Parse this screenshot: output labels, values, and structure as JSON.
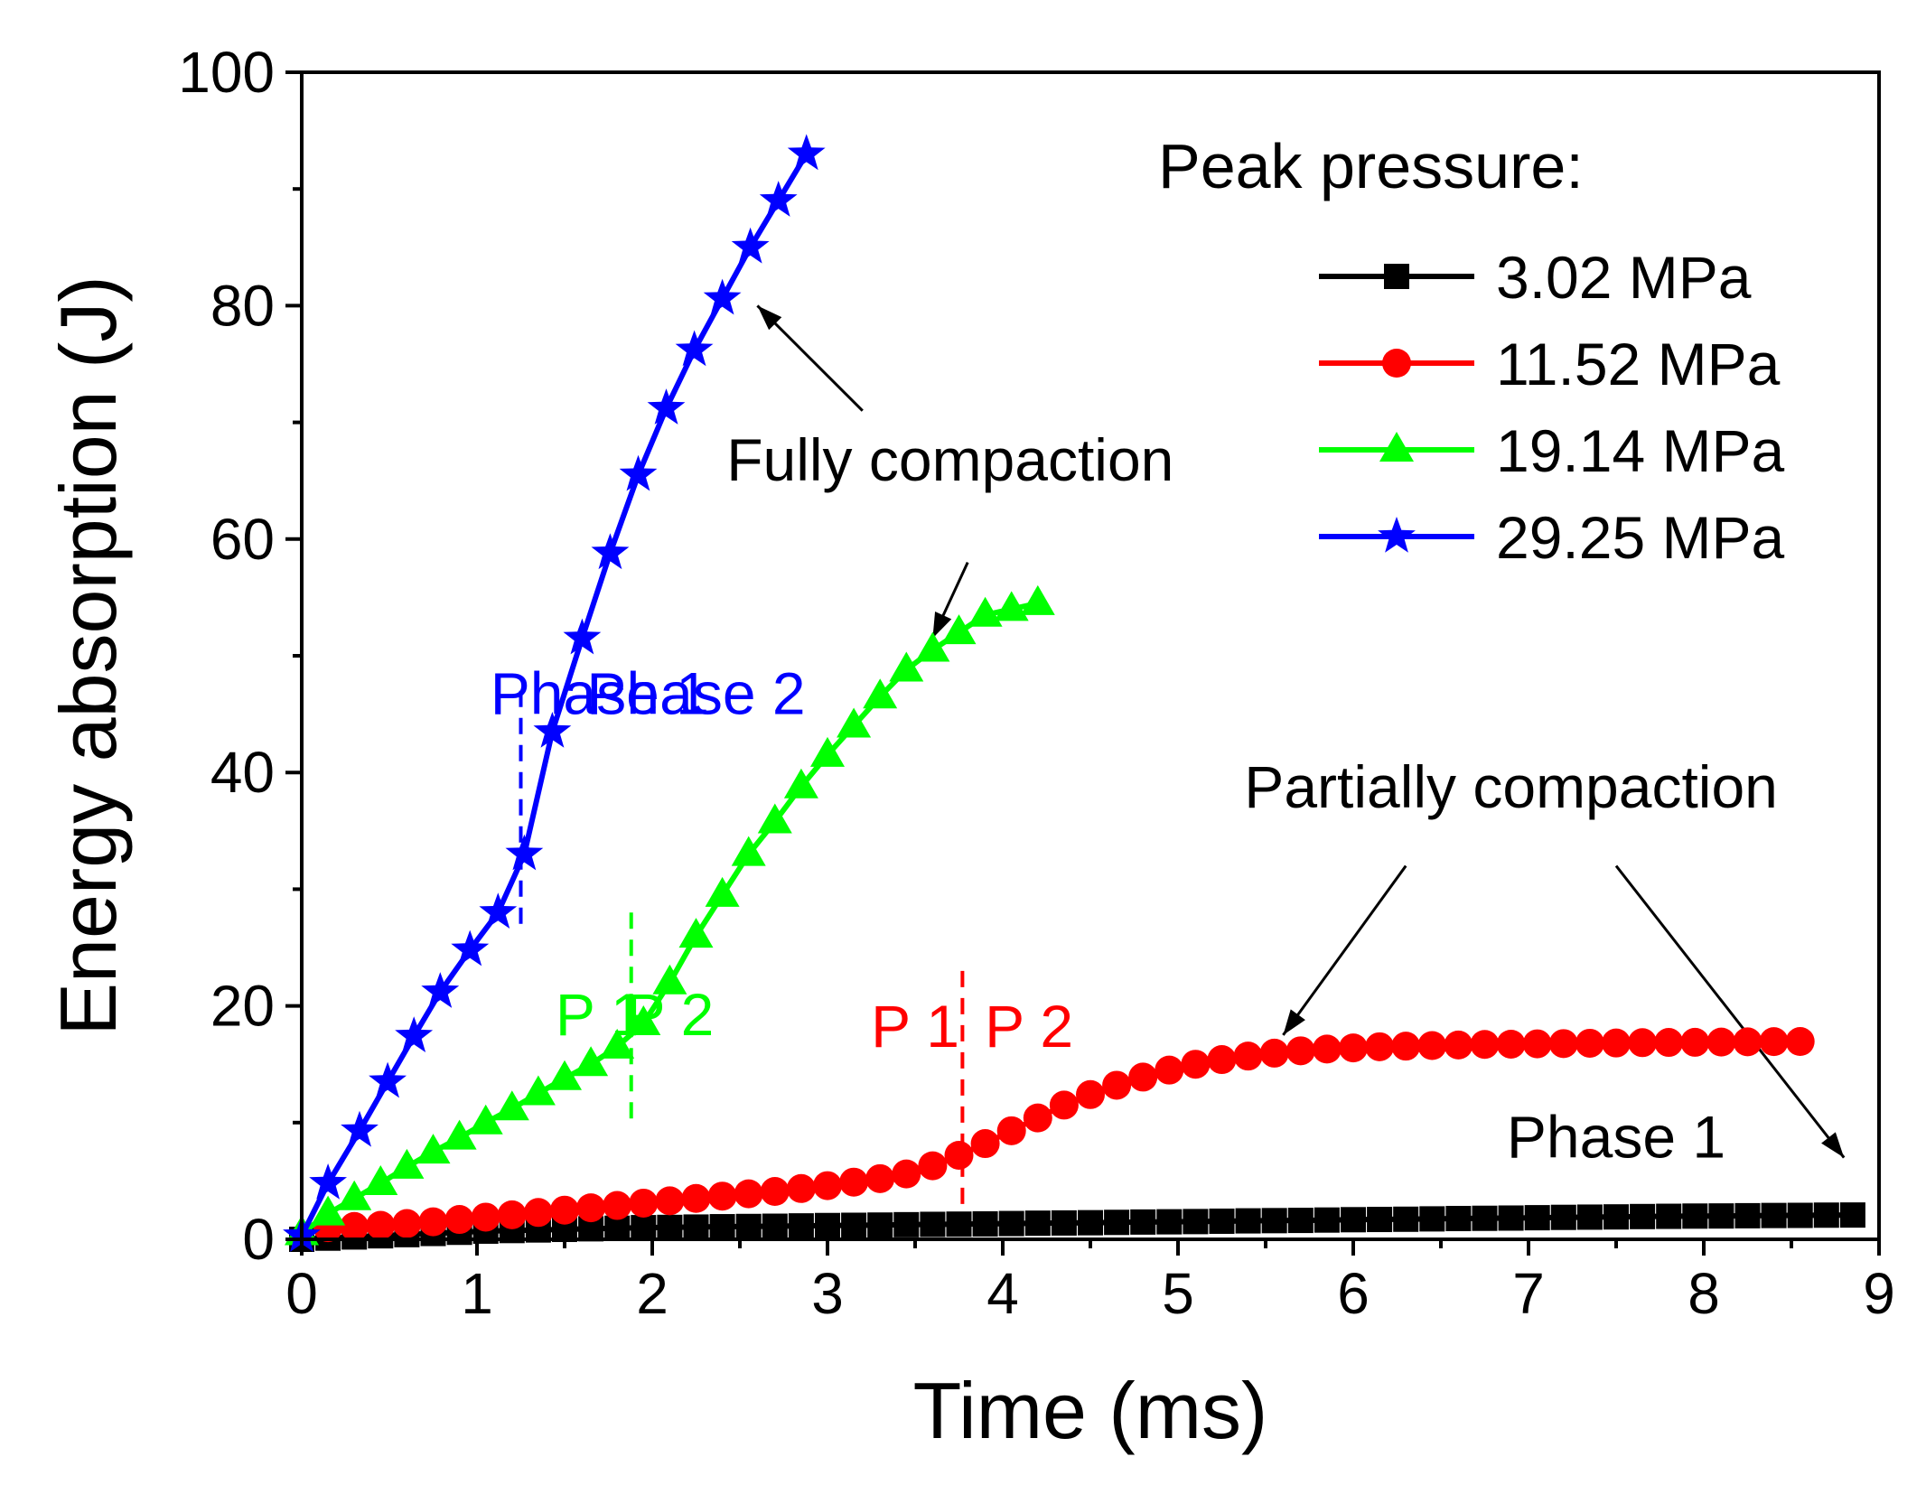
{
  "chart_data": {
    "type": "line",
    "xlabel": "Time (ms)",
    "ylabel": "Energy absorption (J)",
    "xlim": [
      0,
      9
    ],
    "ylim": [
      0,
      100
    ],
    "x_ticks": [
      0,
      1,
      2,
      3,
      4,
      5,
      6,
      7,
      8,
      9
    ],
    "y_ticks": [
      0,
      20,
      40,
      60,
      80,
      100
    ],
    "x_tick_labels": [
      "0",
      "1",
      "2",
      "3",
      "4",
      "5",
      "6",
      "7",
      "8",
      "9"
    ],
    "y_tick_labels": [
      "0",
      "20",
      "40",
      "60",
      "80",
      "100"
    ],
    "grid": false,
    "legend": {
      "title": "Peak pressure:",
      "placement": "top-right",
      "entries": [
        "3.02 MPa",
        "11.52 MPa",
        "19.14 MPa",
        "29.25 MPa"
      ]
    },
    "series": [
      {
        "name": "3.02 MPa",
        "color": "#000000",
        "marker": "square",
        "x": [
          0,
          0.15,
          0.3,
          0.45,
          0.6,
          0.75,
          0.9,
          1.05,
          1.2,
          1.35,
          1.5,
          1.65,
          1.8,
          1.95,
          2.1,
          2.25,
          2.4,
          2.55,
          2.7,
          2.85,
          3.0,
          3.15,
          3.3,
          3.45,
          3.6,
          3.75,
          3.9,
          4.05,
          4.2,
          4.35,
          4.5,
          4.65,
          4.8,
          4.95,
          5.1,
          5.25,
          5.4,
          5.55,
          5.7,
          5.85,
          6.0,
          6.15,
          6.3,
          6.45,
          6.6,
          6.75,
          6.9,
          7.05,
          7.2,
          7.35,
          7.5,
          7.65,
          7.8,
          7.95,
          8.1,
          8.25,
          8.4,
          8.55,
          8.7,
          8.85
        ],
        "y": [
          0,
          0.1,
          0.2,
          0.3,
          0.4,
          0.5,
          0.6,
          0.7,
          0.75,
          0.8,
          0.85,
          0.9,
          0.95,
          1.0,
          1.02,
          1.05,
          1.08,
          1.1,
          1.12,
          1.15,
          1.18,
          1.2,
          1.22,
          1.25,
          1.28,
          1.3,
          1.32,
          1.35,
          1.38,
          1.4,
          1.42,
          1.45,
          1.48,
          1.5,
          1.52,
          1.55,
          1.58,
          1.6,
          1.62,
          1.65,
          1.68,
          1.7,
          1.72,
          1.75,
          1.78,
          1.8,
          1.82,
          1.85,
          1.88,
          1.9,
          1.92,
          1.95,
          1.97,
          1.99,
          2.0,
          2.02,
          2.04,
          2.05,
          2.07,
          2.08
        ]
      },
      {
        "name": "11.52 MPa",
        "color": "#ff0000",
        "marker": "circle",
        "x": [
          0.15,
          0.3,
          0.45,
          0.6,
          0.75,
          0.9,
          1.05,
          1.2,
          1.35,
          1.5,
          1.65,
          1.8,
          1.95,
          2.1,
          2.25,
          2.4,
          2.55,
          2.7,
          2.85,
          3.0,
          3.15,
          3.3,
          3.45,
          3.6,
          3.75,
          3.9,
          4.05,
          4.2,
          4.35,
          4.5,
          4.65,
          4.8,
          4.95,
          5.1,
          5.25,
          5.4,
          5.55,
          5.7,
          5.85,
          6.0,
          6.15,
          6.3,
          6.45,
          6.6,
          6.75,
          6.9,
          7.05,
          7.2,
          7.35,
          7.5,
          7.65,
          7.8,
          7.95,
          8.1,
          8.25,
          8.4,
          8.55
        ],
        "y": [
          1.0,
          1.1,
          1.2,
          1.35,
          1.5,
          1.7,
          1.9,
          2.1,
          2.3,
          2.5,
          2.7,
          2.9,
          3.1,
          3.3,
          3.5,
          3.7,
          3.9,
          4.1,
          4.35,
          4.6,
          4.9,
          5.2,
          5.6,
          6.3,
          7.2,
          8.2,
          9.3,
          10.4,
          11.5,
          12.4,
          13.2,
          13.9,
          14.5,
          15.0,
          15.4,
          15.7,
          15.95,
          16.15,
          16.3,
          16.4,
          16.5,
          16.55,
          16.6,
          16.65,
          16.7,
          16.72,
          16.75,
          16.77,
          16.8,
          16.82,
          16.85,
          16.87,
          16.88,
          16.9,
          16.92,
          16.94,
          16.95
        ]
      },
      {
        "name": "19.14 MPa",
        "color": "#00ff00",
        "marker": "triangle",
        "x": [
          0,
          0.15,
          0.3,
          0.45,
          0.6,
          0.75,
          0.9,
          1.05,
          1.2,
          1.35,
          1.5,
          1.65,
          1.8,
          1.95,
          2.1,
          2.25,
          2.4,
          2.55,
          2.7,
          2.85,
          3.0,
          3.15,
          3.3,
          3.45,
          3.6,
          3.75,
          3.9,
          4.05,
          4.2
        ],
        "y": [
          0.5,
          2.2,
          3.5,
          4.8,
          6.2,
          7.5,
          8.7,
          10.0,
          11.2,
          12.5,
          13.8,
          15.0,
          16.5,
          18.5,
          22.0,
          26.0,
          29.5,
          33.0,
          35.8,
          38.8,
          41.5,
          44.0,
          46.5,
          48.8,
          50.5,
          52.0,
          53.5,
          54.0,
          54.5
        ]
      },
      {
        "name": "29.25 MPa",
        "color": "#0000ff",
        "marker": "star",
        "x": [
          0.0,
          0.15,
          0.33,
          0.49,
          0.64,
          0.79,
          0.96,
          1.12,
          1.27,
          1.43,
          1.6,
          1.76,
          1.92,
          2.08,
          2.24,
          2.4,
          2.56,
          2.72,
          2.88
        ],
        "y": [
          0.3,
          4.8,
          9.3,
          13.5,
          17.4,
          21.2,
          24.8,
          28.0,
          33.0,
          43.5,
          51.5,
          58.8,
          65.5,
          71.2,
          76.2,
          80.6,
          85.0,
          89.0,
          93.0
        ]
      }
    ],
    "annotations": [
      {
        "text": "Fully compaction",
        "x": 3.7,
        "y": 65
      },
      {
        "text": "Partially compaction",
        "x": 6.9,
        "y": 37
      },
      {
        "text": "Phase 1",
        "x": 1.7,
        "y": 45,
        "color": "#0000ff"
      },
      {
        "text": "Phase 2",
        "x": 2.25,
        "y": 45,
        "color": "#0000ff"
      },
      {
        "text": "P 1",
        "x": 1.7,
        "y": 17.5,
        "color": "#00ff00"
      },
      {
        "text": "P 2",
        "x": 2.1,
        "y": 17.5,
        "color": "#00ff00"
      },
      {
        "text": "P 1",
        "x": 3.5,
        "y": 16.5,
        "color": "#ff0000"
      },
      {
        "text": "P 2",
        "x": 4.15,
        "y": 16.5,
        "color": "#ff0000"
      },
      {
        "text": "Phase 1",
        "x": 7.5,
        "y": 7,
        "color": "#000000"
      }
    ],
    "phase_dividers": [
      {
        "x": 1.25,
        "y_range": [
          27,
          47
        ],
        "color": "#0000ff"
      },
      {
        "x": 1.88,
        "y_range": [
          10,
          28
        ],
        "color": "#00ff00"
      },
      {
        "x": 3.77,
        "y_range": [
          2,
          23
        ],
        "color": "#ff0000"
      }
    ],
    "arrows": [
      {
        "from": [
          3.2,
          71
        ],
        "to": [
          2.6,
          80
        ]
      },
      {
        "from": [
          3.8,
          58
        ],
        "to": [
          3.6,
          51.5
        ]
      },
      {
        "from": [
          6.3,
          32
        ],
        "to": [
          5.6,
          17.5
        ]
      },
      {
        "from": [
          7.5,
          32
        ],
        "to": [
          8.8,
          7
        ]
      }
    ]
  }
}
